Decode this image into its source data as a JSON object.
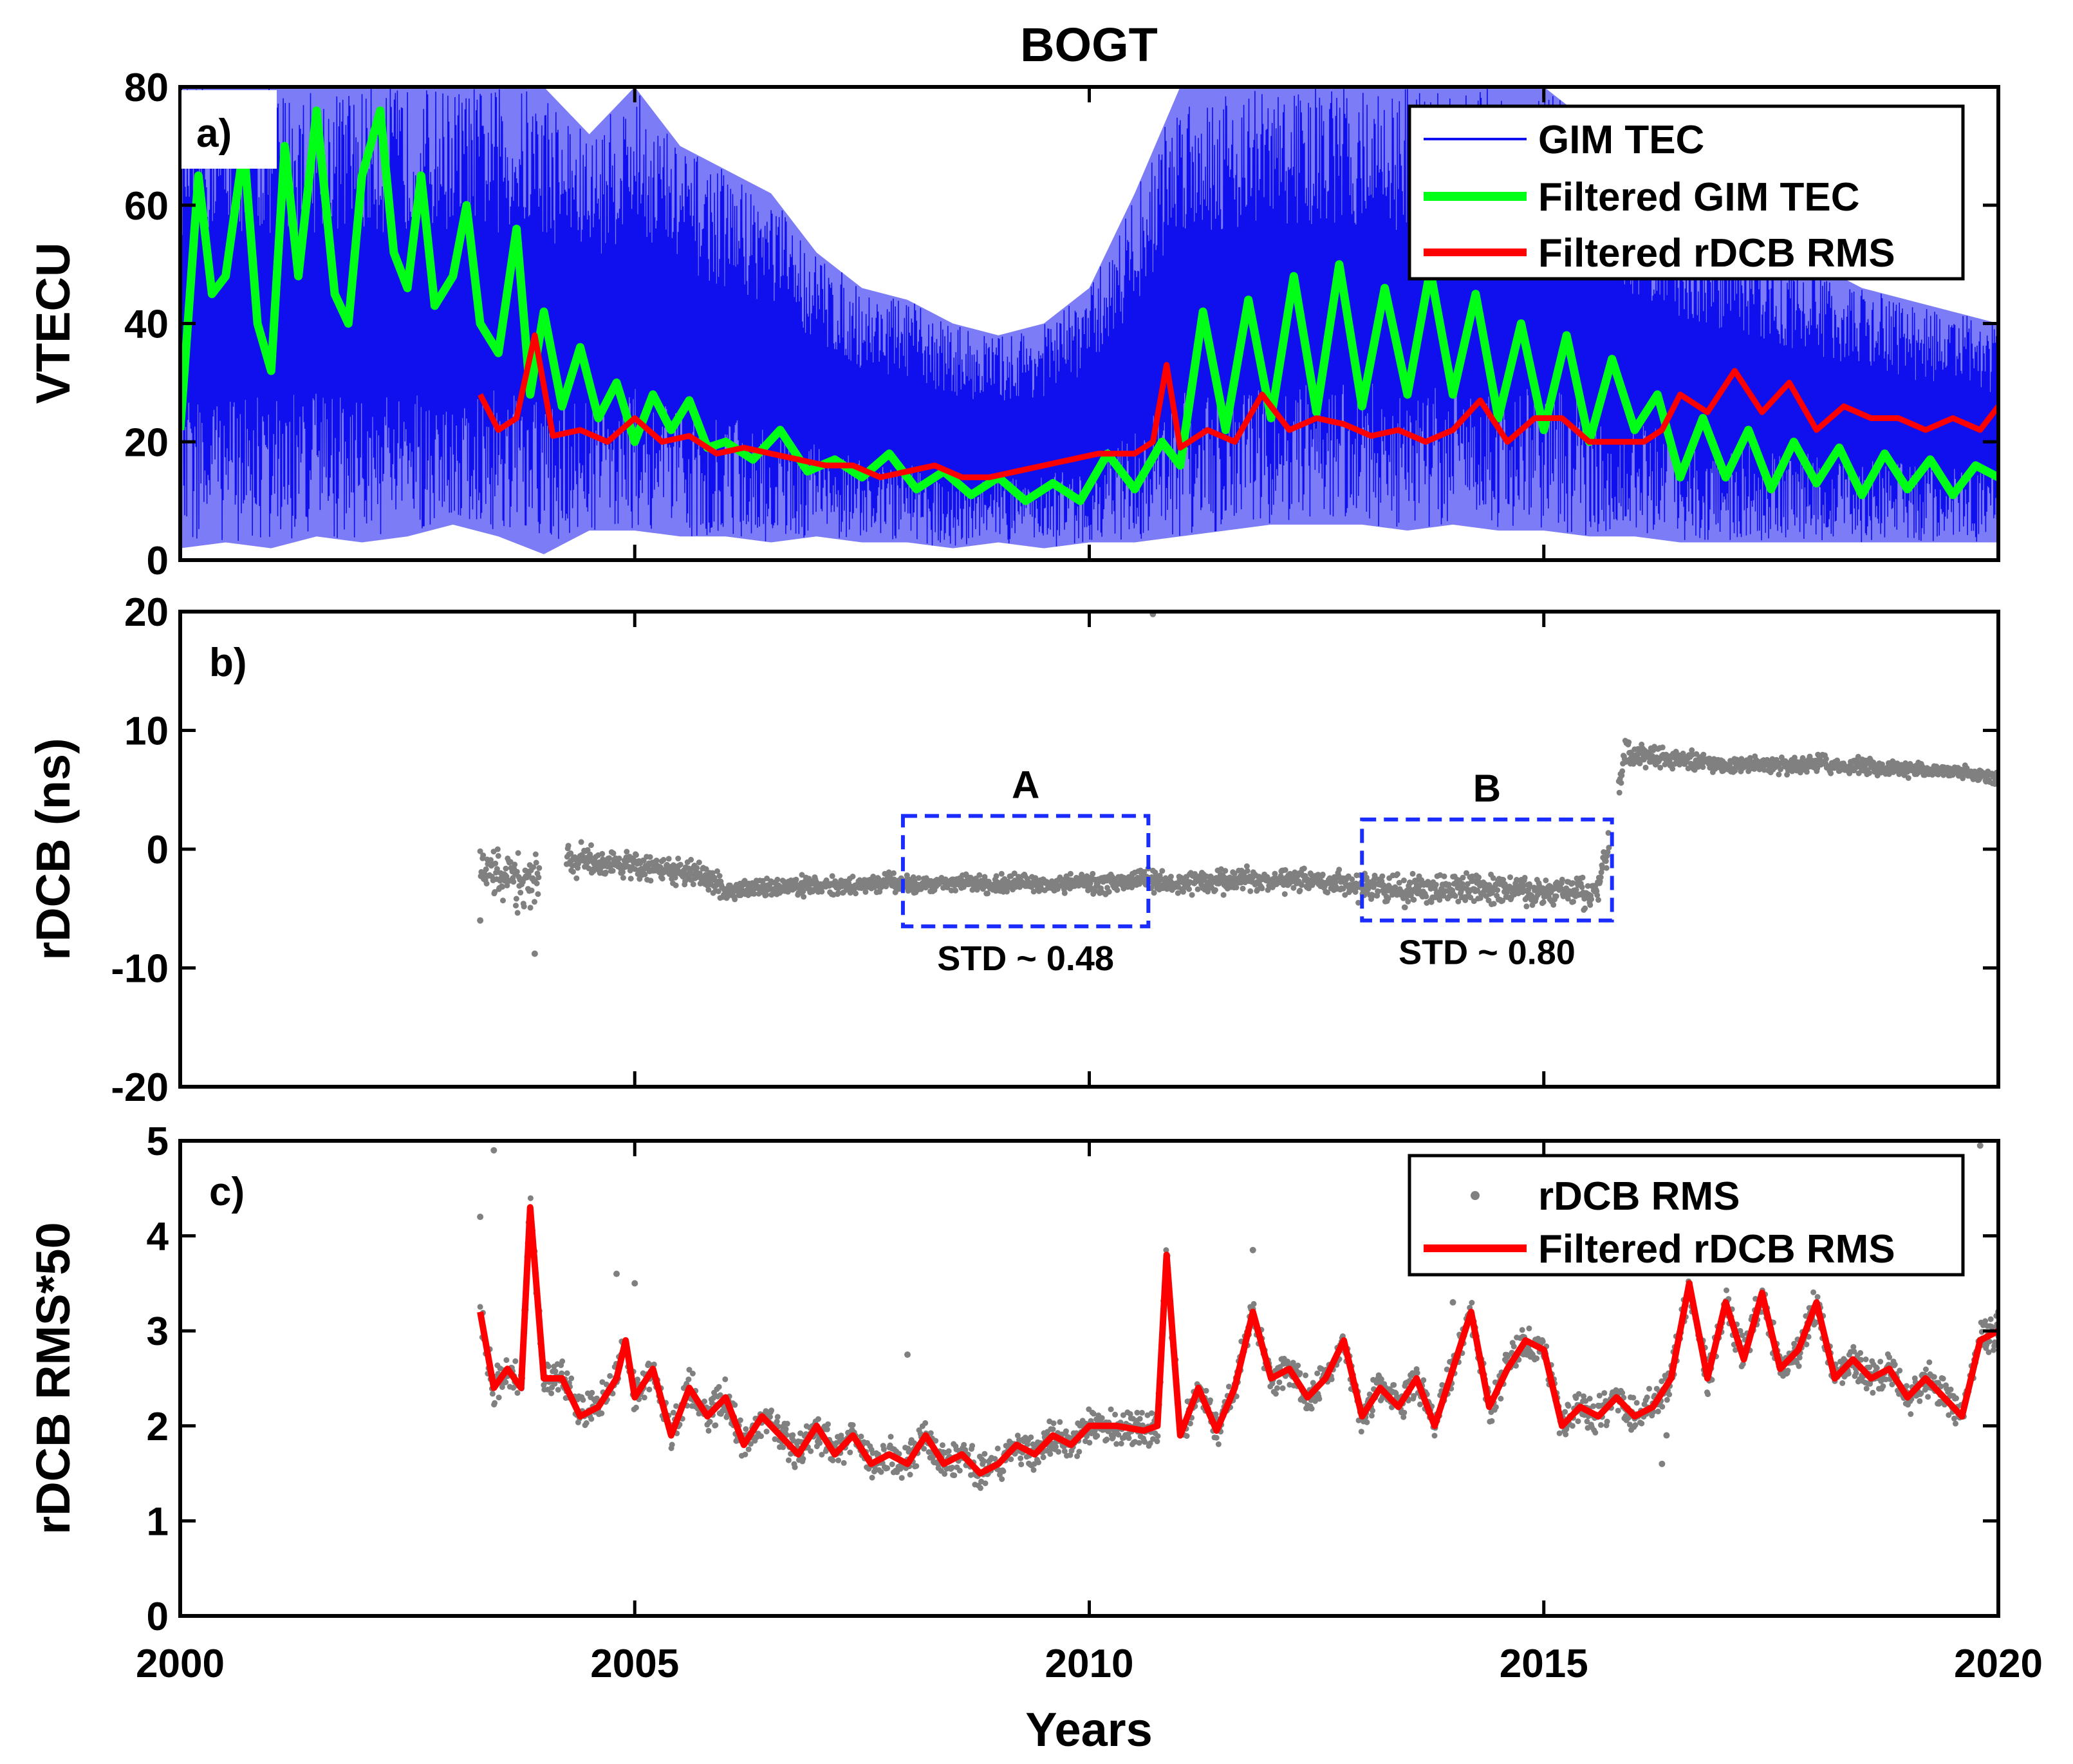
{
  "chart_data": {
    "title": "BOGT",
    "xlabel": "Years",
    "xlim": [
      2000,
      2020
    ],
    "xticks": [
      "2000",
      "2005",
      "2010",
      "2015",
      "2020"
    ],
    "xtick_values": [
      2000,
      2005,
      2010,
      2015,
      2020
    ],
    "panels": [
      {
        "id": "a",
        "panel_label": "a)",
        "type": "line",
        "ylabel": "VTECU",
        "ylim": [
          0,
          80
        ],
        "yticks": [
          "0",
          "20",
          "40",
          "60",
          "80"
        ],
        "ytick_values": [
          0,
          20,
          40,
          60,
          80
        ],
        "legend_position": "top-right",
        "legend": [
          "GIM TEC",
          "Filtered GIM TEC",
          "Filtered rDCB RMS"
        ],
        "series": [
          {
            "name": "GIM TEC",
            "style": "thin line (daily variation envelope)",
            "x": [
              2000.0,
              2000.5,
              2001.0,
              2001.5,
              2002.0,
              2002.5,
              2003.0,
              2003.5,
              2004.0,
              2004.5,
              2005.0,
              2005.5,
              2006.0,
              2006.5,
              2007.0,
              2007.5,
              2008.0,
              2008.5,
              2009.0,
              2009.5,
              2010.0,
              2010.5,
              2011.0,
              2011.5,
              2012.0,
              2012.5,
              2013.0,
              2013.5,
              2014.0,
              2014.5,
              2015.0,
              2015.5,
              2016.0,
              2016.5,
              2017.0,
              2017.5,
              2018.0,
              2018.5,
              2019.0,
              2019.5,
              2020.0
            ],
            "upper": [
              80,
              80,
              80,
              80,
              80,
              80,
              80,
              80,
              80,
              72,
              80,
              70,
              66,
              62,
              52,
              46,
              44,
              40,
              38,
              40,
              46,
              62,
              80,
              80,
              80,
              80,
              80,
              80,
              80,
              80,
              80,
              74,
              64,
              58,
              56,
              52,
              50,
              46,
              44,
              42,
              40
            ],
            "lower": [
              2,
              3,
              2,
              4,
              3,
              4,
              6,
              4,
              1,
              5,
              5,
              4,
              4,
              3,
              4,
              3,
              3,
              2,
              3,
              2,
              3,
              3,
              4,
              5,
              6,
              6,
              6,
              5,
              6,
              5,
              5,
              4,
              4,
              3,
              3,
              3,
              3,
              3,
              3,
              3,
              3
            ]
          },
          {
            "name": "Filtered GIM TEC",
            "x": [
              2000.0,
              2000.2,
              2000.35,
              2000.5,
              2000.7,
              2000.85,
              2001.0,
              2001.15,
              2001.3,
              2001.5,
              2001.7,
              2001.85,
              2002.0,
              2002.2,
              2002.35,
              2002.5,
              2002.65,
              2002.8,
              2003.0,
              2003.15,
              2003.3,
              2003.5,
              2003.7,
              2003.85,
              2004.0,
              2004.2,
              2004.4,
              2004.6,
              2004.8,
              2005.0,
              2005.2,
              2005.4,
              2005.6,
              2005.8,
              2006.0,
              2006.3,
              2006.6,
              2006.9,
              2007.2,
              2007.5,
              2007.8,
              2008.1,
              2008.4,
              2008.7,
              2009.0,
              2009.3,
              2009.6,
              2009.9,
              2010.2,
              2010.5,
              2010.8,
              2011.0,
              2011.25,
              2011.5,
              2011.75,
              2012.0,
              2012.25,
              2012.5,
              2012.75,
              2013.0,
              2013.25,
              2013.5,
              2013.75,
              2014.0,
              2014.25,
              2014.5,
              2014.75,
              2015.0,
              2015.25,
              2015.5,
              2015.75,
              2016.0,
              2016.25,
              2016.5,
              2016.75,
              2017.0,
              2017.25,
              2017.5,
              2017.75,
              2018.0,
              2018.25,
              2018.5,
              2018.75,
              2019.0,
              2019.25,
              2019.5,
              2019.75,
              2020.0
            ],
            "y": [
              22,
              65,
              45,
              48,
              70,
              40,
              32,
              70,
              48,
              76,
              45,
              40,
              65,
              76,
              52,
              46,
              65,
              43,
              48,
              60,
              40,
              35,
              56,
              28,
              42,
              26,
              36,
              24,
              30,
              20,
              28,
              22,
              27,
              19,
              20,
              17,
              22,
              15,
              17,
              14,
              18,
              12,
              15,
              11,
              14,
              10,
              13,
              10,
              18,
              12,
              20,
              16,
              42,
              22,
              44,
              24,
              48,
              25,
              50,
              26,
              46,
              28,
              49,
              28,
              45,
              24,
              40,
              22,
              38,
              20,
              34,
              22,
              28,
              14,
              24,
              14,
              22,
              12,
              20,
              13,
              19,
              11,
              18,
              12,
              17,
              11,
              16,
              14
            ]
          },
          {
            "name": "Filtered rDCB RMS",
            "x": [
              2003.3,
              2003.5,
              2003.7,
              2003.9,
              2004.1,
              2004.4,
              2004.7,
              2005.0,
              2005.3,
              2005.6,
              2005.9,
              2006.2,
              2006.5,
              2006.8,
              2007.1,
              2007.4,
              2007.7,
              2008.0,
              2008.3,
              2008.6,
              2008.9,
              2009.2,
              2009.5,
              2009.8,
              2010.1,
              2010.5,
              2010.7,
              2010.85,
              2011.0,
              2011.3,
              2011.6,
              2011.9,
              2012.2,
              2012.5,
              2012.8,
              2013.1,
              2013.4,
              2013.7,
              2014.0,
              2014.3,
              2014.6,
              2014.9,
              2015.2,
              2015.5,
              2015.8,
              2016.1,
              2016.3,
              2016.5,
              2016.8,
              2017.1,
              2017.4,
              2017.7,
              2018.0,
              2018.3,
              2018.6,
              2018.9,
              2019.2,
              2019.5,
              2019.8,
              2020.0
            ],
            "y": [
              28,
              22,
              24,
              38,
              21,
              22,
              20,
              24,
              20,
              21,
              18,
              19,
              18,
              17,
              16,
              16,
              14,
              15,
              16,
              14,
              14,
              15,
              16,
              17,
              18,
              18,
              20,
              33,
              19,
              22,
              20,
              28,
              22,
              24,
              23,
              21,
              22,
              20,
              22,
              27,
              20,
              24,
              24,
              20,
              20,
              20,
              22,
              28,
              25,
              32,
              25,
              30,
              22,
              26,
              24,
              24,
              22,
              24,
              22,
              26
            ]
          }
        ]
      },
      {
        "id": "b",
        "panel_label": "b)",
        "type": "scatter",
        "ylabel": "rDCB (ns)",
        "ylim": [
          -20,
          20
        ],
        "yticks": [
          "-20",
          "-10",
          "0",
          "10",
          "20"
        ],
        "ytick_values": [
          -20,
          -10,
          0,
          10,
          20
        ],
        "series": [
          {
            "name": "rDCB",
            "x": [
              2003.3,
              2003.6,
              2003.9,
              2004.2,
              2004.5,
              2004.8,
              2005.1,
              2005.4,
              2005.7,
              2006.0,
              2006.3,
              2006.6,
              2006.9,
              2007.2,
              2007.5,
              2007.8,
              2008.1,
              2008.4,
              2008.7,
              2009.0,
              2009.3,
              2009.6,
              2009.9,
              2010.2,
              2010.5,
              2010.8,
              2011.1,
              2011.4,
              2011.7,
              2012.0,
              2012.3,
              2012.6,
              2012.9,
              2013.2,
              2013.5,
              2013.8,
              2014.1,
              2014.4,
              2014.7,
              2015.0,
              2015.3,
              2015.6,
              2015.9,
              2016.2,
              2016.5,
              2016.8,
              2017.1,
              2017.4,
              2017.7,
              2018.0,
              2018.3,
              2018.6,
              2018.9,
              2019.2,
              2019.5,
              2019.8,
              2020.0
            ],
            "y": [
              -2.0,
              -2.5,
              -2.5,
              -0.5,
              -1.0,
              -1.3,
              -1.5,
              -1.8,
              -2.0,
              -3.5,
              -3.3,
              -3.2,
              -3.0,
              -3.2,
              -3.0,
              -2.8,
              -3.0,
              -2.8,
              -2.8,
              -3.0,
              -2.8,
              -3.0,
              -2.8,
              -3.0,
              -2.5,
              -2.7,
              -2.8,
              -2.7,
              -2.5,
              -2.8,
              -2.6,
              -2.8,
              -3.0,
              -3.2,
              -3.5,
              -3.2,
              -3.3,
              -3.5,
              -3.4,
              -3.6,
              -3.5,
              -3.8,
              8.0,
              7.8,
              7.5,
              7.3,
              7.0,
              7.2,
              7.0,
              7.3,
              7.0,
              7.0,
              6.8,
              6.6,
              6.6,
              6.3,
              6.0
            ],
            "spread": [
              1.5,
              1.8,
              1.5,
              1.2,
              1.0,
              0.9,
              0.8,
              0.8,
              0.7,
              0.7,
              0.6,
              0.6,
              0.6,
              0.5,
              0.5,
              0.5,
              0.5,
              0.5,
              0.5,
              0.5,
              0.5,
              0.5,
              0.5,
              0.6,
              0.6,
              0.6,
              0.7,
              0.7,
              0.7,
              0.7,
              0.7,
              0.8,
              0.8,
              0.9,
              0.9,
              0.9,
              0.9,
              0.9,
              0.9,
              0.9,
              0.9,
              0.9,
              0.8,
              0.7,
              0.6,
              0.5,
              0.5,
              0.5,
              0.5,
              0.5,
              0.5,
              0.5,
              0.4,
              0.4,
              0.4,
              0.4,
              0.4
            ]
          }
        ],
        "outliers": [
          [
            2003.9,
            -8.8
          ],
          [
            2003.3,
            -6.0
          ],
          [
            2010.7,
            19.8
          ]
        ],
        "annotations": [
          {
            "label": "A",
            "std_text": "STD ~ 0.48",
            "x_range": [
              2007.95,
              2010.65
            ],
            "y_range": [
              -6.5,
              2.8
            ]
          },
          {
            "label": "B",
            "std_text": "STD ~ 0.80",
            "x_range": [
              2013.0,
              2015.75
            ],
            "y_range": [
              -6.0,
              2.5
            ]
          }
        ]
      },
      {
        "id": "c",
        "panel_label": "c)",
        "type": "line",
        "ylabel": "rDCB RMS*50",
        "ylim": [
          0,
          5
        ],
        "yticks": [
          "0",
          "1",
          "2",
          "3",
          "4",
          "5"
        ],
        "ytick_values": [
          0,
          1,
          2,
          3,
          4,
          5
        ],
        "legend_position": "top-right",
        "legend": [
          "rDCB RMS",
          "Filtered rDCB RMS"
        ],
        "series": [
          {
            "name": "Filtered rDCB RMS",
            "x": [
              2003.3,
              2003.45,
              2003.6,
              2003.75,
              2003.85,
              2004.0,
              2004.2,
              2004.4,
              2004.6,
              2004.8,
              2004.9,
              2005.0,
              2005.2,
              2005.4,
              2005.6,
              2005.8,
              2006.0,
              2006.2,
              2006.4,
              2006.6,
              2006.8,
              2007.0,
              2007.2,
              2007.4,
              2007.6,
              2007.8,
              2008.0,
              2008.2,
              2008.4,
              2008.6,
              2008.8,
              2009.0,
              2009.2,
              2009.4,
              2009.6,
              2009.8,
              2010.0,
              2010.3,
              2010.6,
              2010.75,
              2010.85,
              2011.0,
              2011.2,
              2011.4,
              2011.6,
              2011.8,
              2012.0,
              2012.2,
              2012.4,
              2012.6,
              2012.8,
              2013.0,
              2013.2,
              2013.4,
              2013.6,
              2013.8,
              2014.0,
              2014.2,
              2014.4,
              2014.6,
              2014.8,
              2015.0,
              2015.2,
              2015.4,
              2015.6,
              2015.8,
              2016.0,
              2016.2,
              2016.4,
              2016.6,
              2016.8,
              2017.0,
              2017.2,
              2017.4,
              2017.6,
              2017.8,
              2018.0,
              2018.2,
              2018.4,
              2018.6,
              2018.8,
              2019.0,
              2019.2,
              2019.4,
              2019.6,
              2019.8,
              2020.0
            ],
            "y": [
              3.2,
              2.4,
              2.6,
              2.4,
              4.3,
              2.5,
              2.5,
              2.1,
              2.2,
              2.5,
              2.9,
              2.3,
              2.6,
              1.9,
              2.4,
              2.1,
              2.3,
              1.8,
              2.1,
              1.9,
              1.7,
              2.0,
              1.7,
              1.9,
              1.6,
              1.7,
              1.6,
              1.9,
              1.6,
              1.7,
              1.5,
              1.6,
              1.8,
              1.7,
              1.9,
              1.8,
              2.0,
              2.0,
              1.95,
              2.0,
              3.8,
              1.9,
              2.4,
              1.95,
              2.4,
              3.2,
              2.5,
              2.6,
              2.3,
              2.5,
              2.9,
              2.1,
              2.4,
              2.2,
              2.5,
              2.0,
              2.6,
              3.2,
              2.2,
              2.6,
              2.9,
              2.8,
              2.0,
              2.2,
              2.1,
              2.3,
              2.1,
              2.2,
              2.5,
              3.5,
              2.5,
              3.3,
              2.7,
              3.4,
              2.6,
              2.8,
              3.3,
              2.5,
              2.7,
              2.5,
              2.6,
              2.3,
              2.5,
              2.3,
              2.1,
              2.9,
              3.0
            ]
          },
          {
            "name": "rDCB RMS",
            "style": "gray dots scattered around the filtered curve",
            "outliers": [
              [
                2003.45,
                4.9
              ],
              [
                2003.3,
                4.2
              ],
              [
                2004.8,
                3.6
              ],
              [
                2005.0,
                3.5
              ],
              [
                2008.0,
                2.75
              ],
              [
                2011.8,
                3.85
              ],
              [
                2014.0,
                3.3
              ],
              [
                2016.3,
                1.6
              ],
              [
                2016.35,
                1.9
              ],
              [
                2019.8,
                4.95
              ],
              [
                2020.0,
                3.2
              ]
            ]
          }
        ]
      }
    ]
  },
  "colors": {
    "gim_tec": "#1010ee",
    "filtered_gim_tec": "#00ff16",
    "filtered_rdcb_rms": "#ff0000",
    "rdcb_points": "#808080",
    "annotation_box": "#1a2cff",
    "axes": "#000000"
  }
}
